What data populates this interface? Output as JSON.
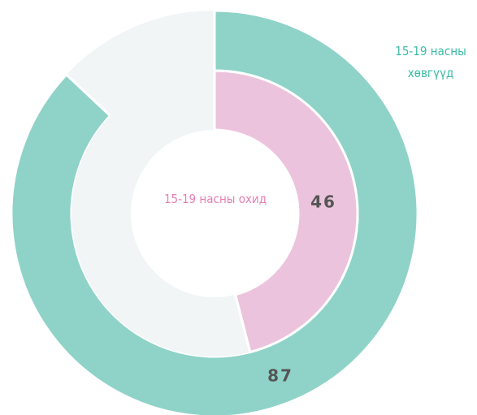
{
  "chart_data": {
    "type": "nested-donut",
    "series": [
      {
        "name": "15-19 насны хөвгүүд",
        "color": "#8fd3c8",
        "values": [
          87
        ]
      },
      {
        "name": "15-19 насны охид",
        "color": "#ecc3dc",
        "values": [
          46
        ]
      }
    ]
  }
}
